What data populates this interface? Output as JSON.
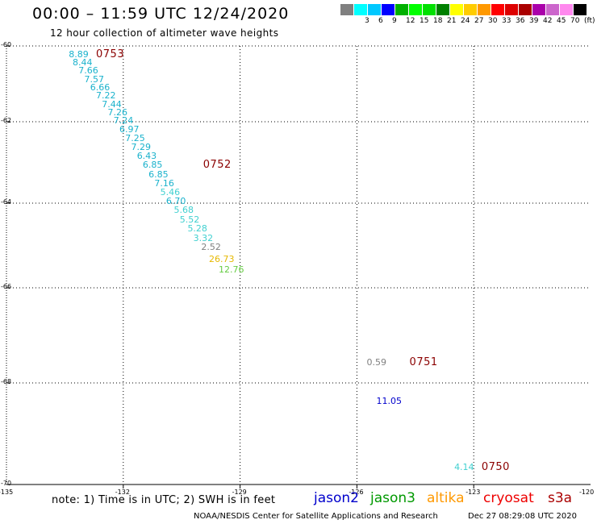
{
  "header": {
    "title": "00:00 – 11:59 UTC 12/24/2020",
    "subtitle": "12 hour collection of altimeter wave heights"
  },
  "legend": {
    "swatches": [
      {
        "color": "#808080",
        "label": ""
      },
      {
        "color": "#00ffff",
        "label": "3"
      },
      {
        "color": "#00c8ff",
        "label": "6"
      },
      {
        "color": "#0000ff",
        "label": "9"
      },
      {
        "color": "#00b000",
        "label": "12"
      },
      {
        "color": "#00ff00",
        "label": "15"
      },
      {
        "color": "#00e000",
        "label": "18"
      },
      {
        "color": "#008000",
        "label": "21"
      },
      {
        "color": "#ffff00",
        "label": "24"
      },
      {
        "color": "#ffcc00",
        "label": "27"
      },
      {
        "color": "#ff9900",
        "label": "30"
      },
      {
        "color": "#ff0000",
        "label": "33"
      },
      {
        "color": "#dd0000",
        "label": "36"
      },
      {
        "color": "#aa0000",
        "label": "39"
      },
      {
        "color": "#aa00aa",
        "label": "42"
      },
      {
        "color": "#cc66cc",
        "label": "45"
      },
      {
        "color": "#ff88ee",
        "label": "70"
      },
      {
        "color": "#000000",
        "label": "(ft)"
      }
    ]
  },
  "map": {
    "lat_labels": [
      "-60",
      "-62",
      "-64",
      "-66",
      "-68",
      "-70"
    ],
    "lon_labels": [
      "-135",
      "-132",
      "-129",
      "-126",
      "-123",
      "-120"
    ]
  },
  "observations": [
    {
      "text": "8.89",
      "color": "#1ab2cc",
      "lon": -133.4,
      "lat": -60.08
    },
    {
      "text": "8.44",
      "color": "#1ab2cc",
      "lon": -133.3,
      "lat": -60.3
    },
    {
      "text": "7.66",
      "color": "#1ab2cc",
      "lon": -133.15,
      "lat": -60.52
    },
    {
      "text": "7.57",
      "color": "#1ab2cc",
      "lon": -133.0,
      "lat": -60.74
    },
    {
      "text": "6.66",
      "color": "#1ab2cc",
      "lon": -132.85,
      "lat": -60.96
    },
    {
      "text": "7.22",
      "color": "#1ab2cc",
      "lon": -132.7,
      "lat": -61.18
    },
    {
      "text": "7.44",
      "color": "#1ab2cc",
      "lon": -132.55,
      "lat": -61.4
    },
    {
      "text": "7.26",
      "color": "#1ab2cc",
      "lon": -132.4,
      "lat": -61.62
    },
    {
      "text": "7.24",
      "color": "#1ab2cc",
      "lon": -132.25,
      "lat": -61.84
    },
    {
      "text": "6.97",
      "color": "#1ab2cc",
      "lon": -132.1,
      "lat": -62.06
    },
    {
      "text": "7.25",
      "color": "#1ab2cc",
      "lon": -131.95,
      "lat": -62.28
    },
    {
      "text": "7.29",
      "color": "#1ab2cc",
      "lon": -131.8,
      "lat": -62.5
    },
    {
      "text": "6.43",
      "color": "#1ab2cc",
      "lon": -131.65,
      "lat": -62.72
    },
    {
      "text": "6.85",
      "color": "#1ab2cc",
      "lon": -131.5,
      "lat": -62.94
    },
    {
      "text": "6.85",
      "color": "#1ab2cc",
      "lon": -131.35,
      "lat": -63.16
    },
    {
      "text": "7.16",
      "color": "#1ab2cc",
      "lon": -131.2,
      "lat": -63.38
    },
    {
      "text": "5.46",
      "color": "#40d0d0",
      "lon": -131.05,
      "lat": -63.6
    },
    {
      "text": "6.70",
      "color": "#1ab2cc",
      "lon": -130.9,
      "lat": -63.82
    },
    {
      "text": "5.68",
      "color": "#40d0d0",
      "lon": -130.7,
      "lat": -64.04
    },
    {
      "text": "5.52",
      "color": "#40d0d0",
      "lon": -130.55,
      "lat": -64.26
    },
    {
      "text": "5.28",
      "color": "#40d0d0",
      "lon": -130.35,
      "lat": -64.48
    },
    {
      "text": "3.32",
      "color": "#40d0d0",
      "lon": -130.2,
      "lat": -64.7
    },
    {
      "text": "2.52",
      "color": "#808080",
      "lon": -130.0,
      "lat": -64.92
    },
    {
      "text": "26.73",
      "color": "#e6b800",
      "lon": -129.8,
      "lat": -65.2
    },
    {
      "text": "12.76",
      "color": "#66cc44",
      "lon": -129.55,
      "lat": -65.45
    },
    {
      "text": "0.59",
      "color": "#808080",
      "lon": -125.75,
      "lat": -67.45
    },
    {
      "text": "11.05",
      "color": "#0000cc",
      "lon": -125.5,
      "lat": -68.25
    },
    {
      "text": "4.14",
      "color": "#40d0d0",
      "lon": -123.5,
      "lat": -69.55
    }
  ],
  "time_labels": [
    {
      "text": "0753",
      "lon": -132.7,
      "lat": -60.08
    },
    {
      "text": "0752",
      "lon": -129.95,
      "lat": -62.94
    },
    {
      "text": "0751",
      "lon": -124.65,
      "lat": -67.45
    },
    {
      "text": "0750",
      "lon": -122.8,
      "lat": -69.55
    }
  ],
  "footer": {
    "note": "note: 1) Time is in UTC; 2) SWH is in feet",
    "satellites": [
      {
        "name": "jason2",
        "color": "#0000cc"
      },
      {
        "name": "jason3",
        "color": "#009900"
      },
      {
        "name": "altika",
        "color": "#ff9900"
      },
      {
        "name": "cryosat",
        "color": "#ee0000"
      },
      {
        "name": "s3a",
        "color": "#aa0000"
      }
    ],
    "credit": "NOAA/NESDIS Center for Satellite Applications and Research",
    "timestamp": "Dec 27 08:29:08 UTC 2020"
  }
}
